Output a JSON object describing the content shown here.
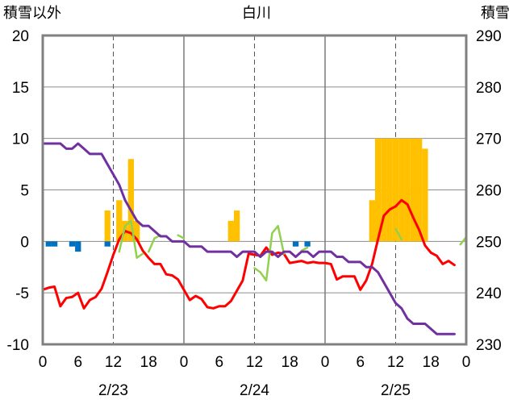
{
  "chart_data": {
    "type": "bar+line",
    "title": "白川",
    "left_axis_label": "積雪以外",
    "right_axis_label": "積雪",
    "left_ylim": [
      -10,
      20
    ],
    "left_ticks": [
      20,
      15,
      10,
      5,
      0,
      -5,
      -10
    ],
    "right_ylim": [
      230,
      290
    ],
    "right_ticks": [
      290,
      280,
      270,
      260,
      250,
      240,
      230
    ],
    "x_range_hours": [
      0,
      72
    ],
    "x_ticks": [
      {
        "h": 0,
        "label": "0"
      },
      {
        "h": 6,
        "label": "6"
      },
      {
        "h": 12,
        "label": "12"
      },
      {
        "h": 18,
        "label": "18"
      },
      {
        "h": 24,
        "label": "0"
      },
      {
        "h": 30,
        "label": "6"
      },
      {
        "h": 36,
        "label": "12"
      },
      {
        "h": 42,
        "label": "18"
      },
      {
        "h": 48,
        "label": "0"
      },
      {
        "h": 54,
        "label": "6"
      },
      {
        "h": 60,
        "label": "12"
      },
      {
        "h": 66,
        "label": "18"
      },
      {
        "h": 72,
        "label": "0"
      }
    ],
    "dates": [
      {
        "label": "2/23",
        "center_h": 12
      },
      {
        "label": "2/24",
        "center_h": 36
      },
      {
        "label": "2/25",
        "center_h": 60
      }
    ],
    "day_boundaries_h": [
      24,
      48
    ],
    "dashed_hours": [
      12,
      36,
      60
    ],
    "grid": true,
    "series": [
      {
        "kind": "bar",
        "color": "#ffc000",
        "points": [
          [
            11,
            3
          ],
          [
            13,
            4
          ],
          [
            14,
            2
          ],
          [
            15,
            8
          ],
          [
            16,
            2
          ],
          [
            32,
            2
          ],
          [
            33,
            3
          ],
          [
            56,
            4
          ],
          [
            57,
            10
          ],
          [
            58,
            10
          ],
          [
            59,
            10
          ],
          [
            60,
            10
          ],
          [
            61,
            10
          ],
          [
            62,
            10
          ],
          [
            63,
            10
          ],
          [
            64,
            10
          ],
          [
            65,
            9
          ]
        ]
      },
      {
        "kind": "bar",
        "color": "#0070c0",
        "points": [
          [
            1,
            -0.5
          ],
          [
            2,
            -0.5
          ],
          [
            5,
            -0.5
          ],
          [
            6,
            -1
          ],
          [
            11,
            -0.5
          ],
          [
            43,
            -0.5
          ],
          [
            45,
            -0.5
          ]
        ]
      },
      {
        "kind": "line",
        "color": "#ff0000",
        "axis": "left",
        "points": [
          [
            0,
            -4.7
          ],
          [
            1,
            -4.5
          ],
          [
            2,
            -4.4
          ],
          [
            3,
            -6.3
          ],
          [
            4,
            -5.5
          ],
          [
            5,
            -5.4
          ],
          [
            6,
            -5.0
          ],
          [
            7,
            -6.5
          ],
          [
            8,
            -5.7
          ],
          [
            9,
            -5.4
          ],
          [
            10,
            -4.6
          ],
          [
            11,
            -3.0
          ],
          [
            12,
            -1.3
          ],
          [
            13,
            0.2
          ],
          [
            14,
            1.0
          ],
          [
            15,
            0.8
          ],
          [
            16,
            0.2
          ],
          [
            17,
            -0.9
          ],
          [
            18,
            -1.6
          ],
          [
            19,
            -2.2
          ],
          [
            20,
            -2.2
          ],
          [
            21,
            -3.2
          ],
          [
            22,
            -3.3
          ],
          [
            23,
            -3.7
          ],
          [
            24,
            -4.7
          ],
          [
            25,
            -5.7
          ],
          [
            26,
            -5.3
          ],
          [
            27,
            -5.6
          ],
          [
            28,
            -6.4
          ],
          [
            29,
            -6.5
          ],
          [
            30,
            -6.3
          ],
          [
            31,
            -6.3
          ],
          [
            32,
            -5.8
          ],
          [
            33,
            -4.8
          ],
          [
            34,
            -3.8
          ],
          [
            35,
            -1.2
          ],
          [
            36,
            -1.3
          ],
          [
            37,
            -1.4
          ],
          [
            38,
            -0.6
          ],
          [
            39,
            -1.3
          ],
          [
            40,
            -1.1
          ],
          [
            41,
            -1.2
          ],
          [
            42,
            -2.1
          ],
          [
            43,
            -2.0
          ],
          [
            44,
            -1.9
          ],
          [
            45,
            -2.1
          ],
          [
            46,
            -2.0
          ],
          [
            47,
            -2.1
          ],
          [
            48,
            -2.1
          ],
          [
            49,
            -2.2
          ],
          [
            50,
            -3.7
          ],
          [
            51,
            -3.4
          ],
          [
            52,
            -3.4
          ],
          [
            53,
            -3.4
          ],
          [
            54,
            -4.7
          ],
          [
            55,
            -3.8
          ],
          [
            56,
            -2.2
          ],
          [
            57,
            0.2
          ],
          [
            58,
            2.5
          ],
          [
            59,
            3.1
          ],
          [
            60,
            3.4
          ],
          [
            61,
            4.0
          ],
          [
            62,
            3.6
          ],
          [
            63,
            2.3
          ],
          [
            64,
            1.1
          ],
          [
            65,
            -0.4
          ],
          [
            66,
            -1.1
          ],
          [
            67,
            -1.4
          ],
          [
            68,
            -2.2
          ],
          [
            69,
            -1.9
          ],
          [
            70,
            -2.3
          ]
        ]
      },
      {
        "kind": "line",
        "color": "#92d050",
        "axis": "left",
        "segments": [
          [
            [
              13,
              -1.0
            ],
            [
              14,
              1.5
            ],
            [
              15,
              2.0
            ],
            [
              16,
              -1.6
            ],
            [
              17,
              -1.2
            ]
          ],
          [
            [
              18,
              -1.0
            ],
            [
              19,
              0.3
            ],
            [
              20,
              0.6
            ]
          ],
          [
            [
              23,
              0.6
            ],
            [
              24,
              0.3
            ]
          ],
          [
            [
              36,
              -2.6
            ],
            [
              37,
              -3.0
            ],
            [
              38,
              -3.8
            ],
            [
              39,
              0.8
            ],
            [
              40,
              1.5
            ],
            [
              41,
              -1.2
            ]
          ],
          [
            [
              44,
              -0.9
            ],
            [
              45,
              -0.6
            ]
          ],
          [
            [
              60,
              1.2
            ],
            [
              61,
              0.2
            ]
          ],
          [
            [
              71,
              -0.3
            ],
            [
              72,
              0.4
            ]
          ]
        ]
      },
      {
        "kind": "line",
        "color": "#7030a0",
        "axis": "right",
        "points": [
          [
            0,
            269
          ],
          [
            2,
            269
          ],
          [
            3,
            269
          ],
          [
            4,
            268
          ],
          [
            5,
            268
          ],
          [
            6,
            269
          ],
          [
            7,
            268
          ],
          [
            8,
            267
          ],
          [
            9,
            267
          ],
          [
            10,
            267
          ],
          [
            11,
            265
          ],
          [
            12,
            263
          ],
          [
            13,
            261
          ],
          [
            14,
            258
          ],
          [
            15,
            256
          ],
          [
            16,
            254
          ],
          [
            17,
            253
          ],
          [
            18,
            253
          ],
          [
            19,
            252
          ],
          [
            20,
            251
          ],
          [
            21,
            251
          ],
          [
            22,
            250
          ],
          [
            23,
            250
          ],
          [
            24,
            250
          ],
          [
            25,
            249
          ],
          [
            26,
            249
          ],
          [
            27,
            249
          ],
          [
            28,
            248
          ],
          [
            29,
            248
          ],
          [
            30,
            248
          ],
          [
            31,
            248
          ],
          [
            32,
            248
          ],
          [
            33,
            247
          ],
          [
            34,
            248
          ],
          [
            35,
            248
          ],
          [
            36,
            248
          ],
          [
            37,
            247
          ],
          [
            38,
            248
          ],
          [
            39,
            248
          ],
          [
            40,
            247
          ],
          [
            41,
            248
          ],
          [
            42,
            248
          ],
          [
            43,
            247
          ],
          [
            44,
            248
          ],
          [
            45,
            248
          ],
          [
            46,
            247
          ],
          [
            47,
            248
          ],
          [
            48,
            248
          ],
          [
            49,
            248
          ],
          [
            50,
            247
          ],
          [
            51,
            247
          ],
          [
            52,
            246
          ],
          [
            53,
            246
          ],
          [
            54,
            246
          ],
          [
            55,
            245
          ],
          [
            56,
            245
          ],
          [
            57,
            244
          ],
          [
            58,
            242
          ],
          [
            59,
            240
          ],
          [
            60,
            238
          ],
          [
            61,
            237
          ],
          [
            62,
            235
          ],
          [
            63,
            234
          ],
          [
            64,
            234
          ],
          [
            65,
            234
          ],
          [
            66,
            233
          ],
          [
            67,
            232
          ],
          [
            68,
            232
          ],
          [
            69,
            232
          ],
          [
            70,
            232
          ]
        ]
      }
    ]
  }
}
